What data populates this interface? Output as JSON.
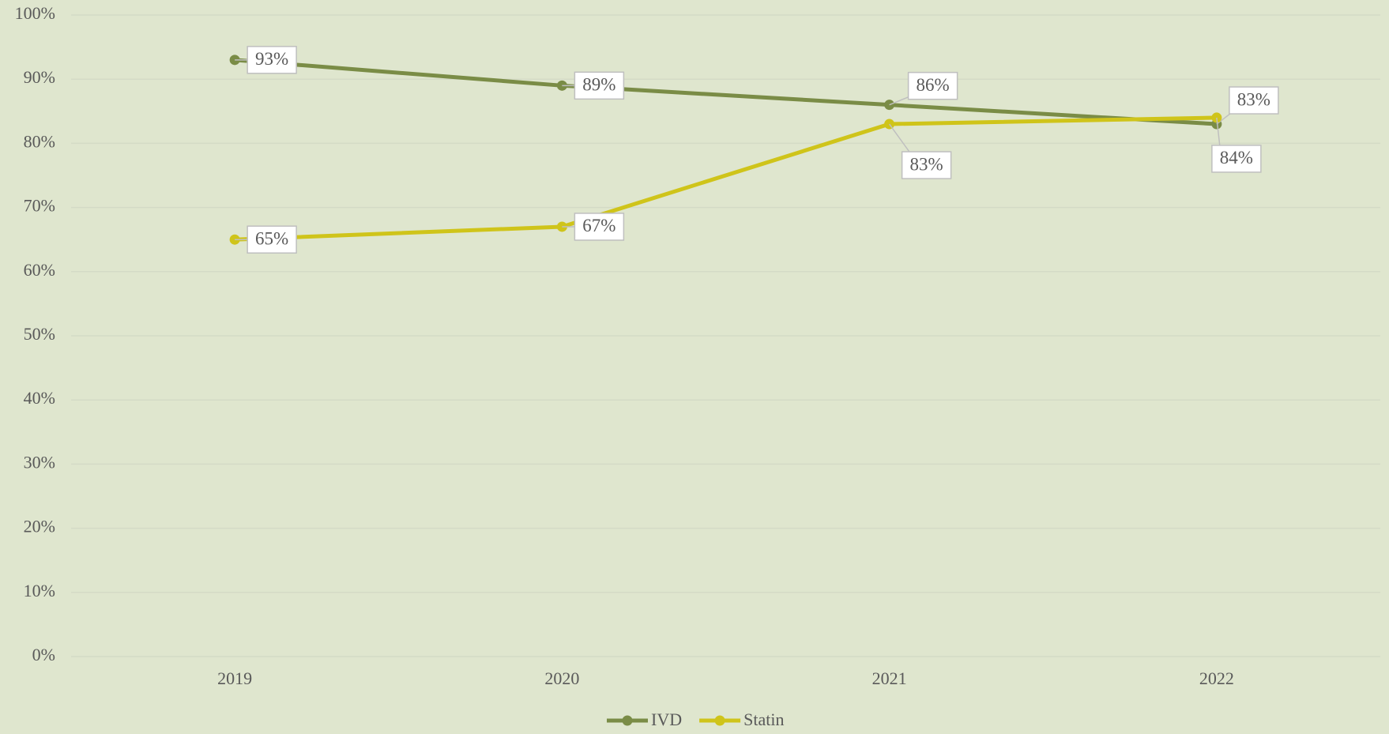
{
  "chart_data": {
    "type": "line",
    "categories": [
      "2019",
      "2020",
      "2021",
      "2022"
    ],
    "series": [
      {
        "name": "IVD",
        "color": "#7a8c46",
        "values": [
          93,
          89,
          86,
          83
        ],
        "value_labels": [
          "93%",
          "89%",
          "86%",
          "83%"
        ]
      },
      {
        "name": "Statin",
        "color": "#cfc41a",
        "values": [
          65,
          67,
          83,
          84
        ],
        "value_labels": [
          "65%",
          "67%",
          "83%",
          "84%"
        ]
      }
    ],
    "ylim": [
      0,
      100
    ],
    "yticks": [
      {
        "value": 0,
        "label": "0%"
      },
      {
        "value": 10,
        "label": "10%"
      },
      {
        "value": 20,
        "label": "20%"
      },
      {
        "value": 30,
        "label": "30%"
      },
      {
        "value": 40,
        "label": "40%"
      },
      {
        "value": 50,
        "label": "50%"
      },
      {
        "value": 60,
        "label": "60%"
      },
      {
        "value": 70,
        "label": "70%"
      },
      {
        "value": 80,
        "label": "80%"
      },
      {
        "value": 90,
        "label": "90%"
      },
      {
        "value": 100,
        "label": "100%"
      }
    ],
    "grid": true,
    "legend": "bottom"
  }
}
